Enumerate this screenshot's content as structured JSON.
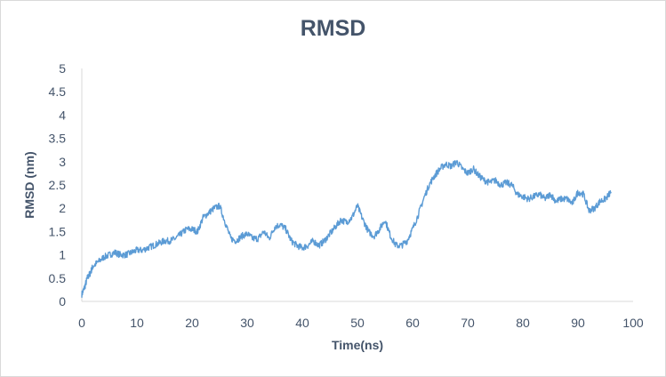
{
  "chart_data": {
    "type": "line",
    "title": "RMSD",
    "xlabel": "Time(ns)",
    "ylabel": "RMSD (nm)",
    "xlim": [
      0,
      100
    ],
    "ylim": [
      0,
      5
    ],
    "x_ticks": [
      "0",
      "10",
      "20",
      "30",
      "40",
      "50",
      "60",
      "70",
      "80",
      "90",
      "100"
    ],
    "y_ticks": [
      "0",
      "0.5",
      "1",
      "1.5",
      "2",
      "2.5",
      "3",
      "3.5",
      "4",
      "4.5",
      "5"
    ],
    "grid": false,
    "legend": "none",
    "colors": {
      "line": "#5b9bd5",
      "text": "#44546a",
      "axis": "#d9d9d9"
    },
    "series": [
      {
        "x": [
          0,
          0.5,
          1,
          1.5,
          2,
          3,
          4,
          5,
          6,
          7,
          8,
          9,
          10,
          11,
          12,
          13,
          14,
          15,
          16,
          17,
          18,
          19,
          20,
          21,
          22,
          23,
          24,
          25,
          26,
          27,
          28,
          29,
          30,
          31,
          32,
          33,
          34,
          35,
          36,
          37,
          38,
          39,
          40,
          41,
          42,
          43,
          44,
          45,
          46,
          47,
          48,
          49,
          50,
          51,
          52,
          53,
          54,
          55,
          56,
          57,
          58,
          59,
          60,
          61,
          62,
          63,
          64,
          65,
          66,
          67,
          68,
          69,
          70,
          71,
          72,
          73,
          74,
          75,
          76,
          77,
          78,
          79,
          80,
          81,
          82,
          83,
          84,
          85,
          86,
          87,
          88,
          89,
          90,
          91,
          92,
          93,
          94,
          95,
          96
        ],
        "values": [
          0.15,
          0.3,
          0.5,
          0.6,
          0.75,
          0.85,
          0.95,
          1.0,
          1.05,
          1.0,
          1.0,
          1.05,
          1.1,
          1.1,
          1.15,
          1.2,
          1.25,
          1.3,
          1.3,
          1.35,
          1.45,
          1.55,
          1.55,
          1.5,
          1.8,
          1.9,
          2.0,
          2.05,
          1.7,
          1.35,
          1.3,
          1.4,
          1.45,
          1.35,
          1.35,
          1.5,
          1.35,
          1.6,
          1.65,
          1.55,
          1.3,
          1.2,
          1.15,
          1.2,
          1.3,
          1.2,
          1.3,
          1.45,
          1.6,
          1.75,
          1.7,
          1.8,
          2.05,
          1.75,
          1.5,
          1.4,
          1.55,
          1.75,
          1.4,
          1.2,
          1.2,
          1.3,
          1.55,
          1.85,
          2.2,
          2.5,
          2.7,
          2.85,
          2.95,
          2.9,
          3.0,
          2.85,
          2.75,
          2.85,
          2.7,
          2.6,
          2.55,
          2.6,
          2.5,
          2.55,
          2.5,
          2.3,
          2.25,
          2.2,
          2.25,
          2.3,
          2.2,
          2.3,
          2.15,
          2.2,
          2.2,
          2.1,
          2.35,
          2.3,
          1.95,
          2.0,
          2.15,
          2.2,
          2.35
        ]
      }
    ]
  }
}
